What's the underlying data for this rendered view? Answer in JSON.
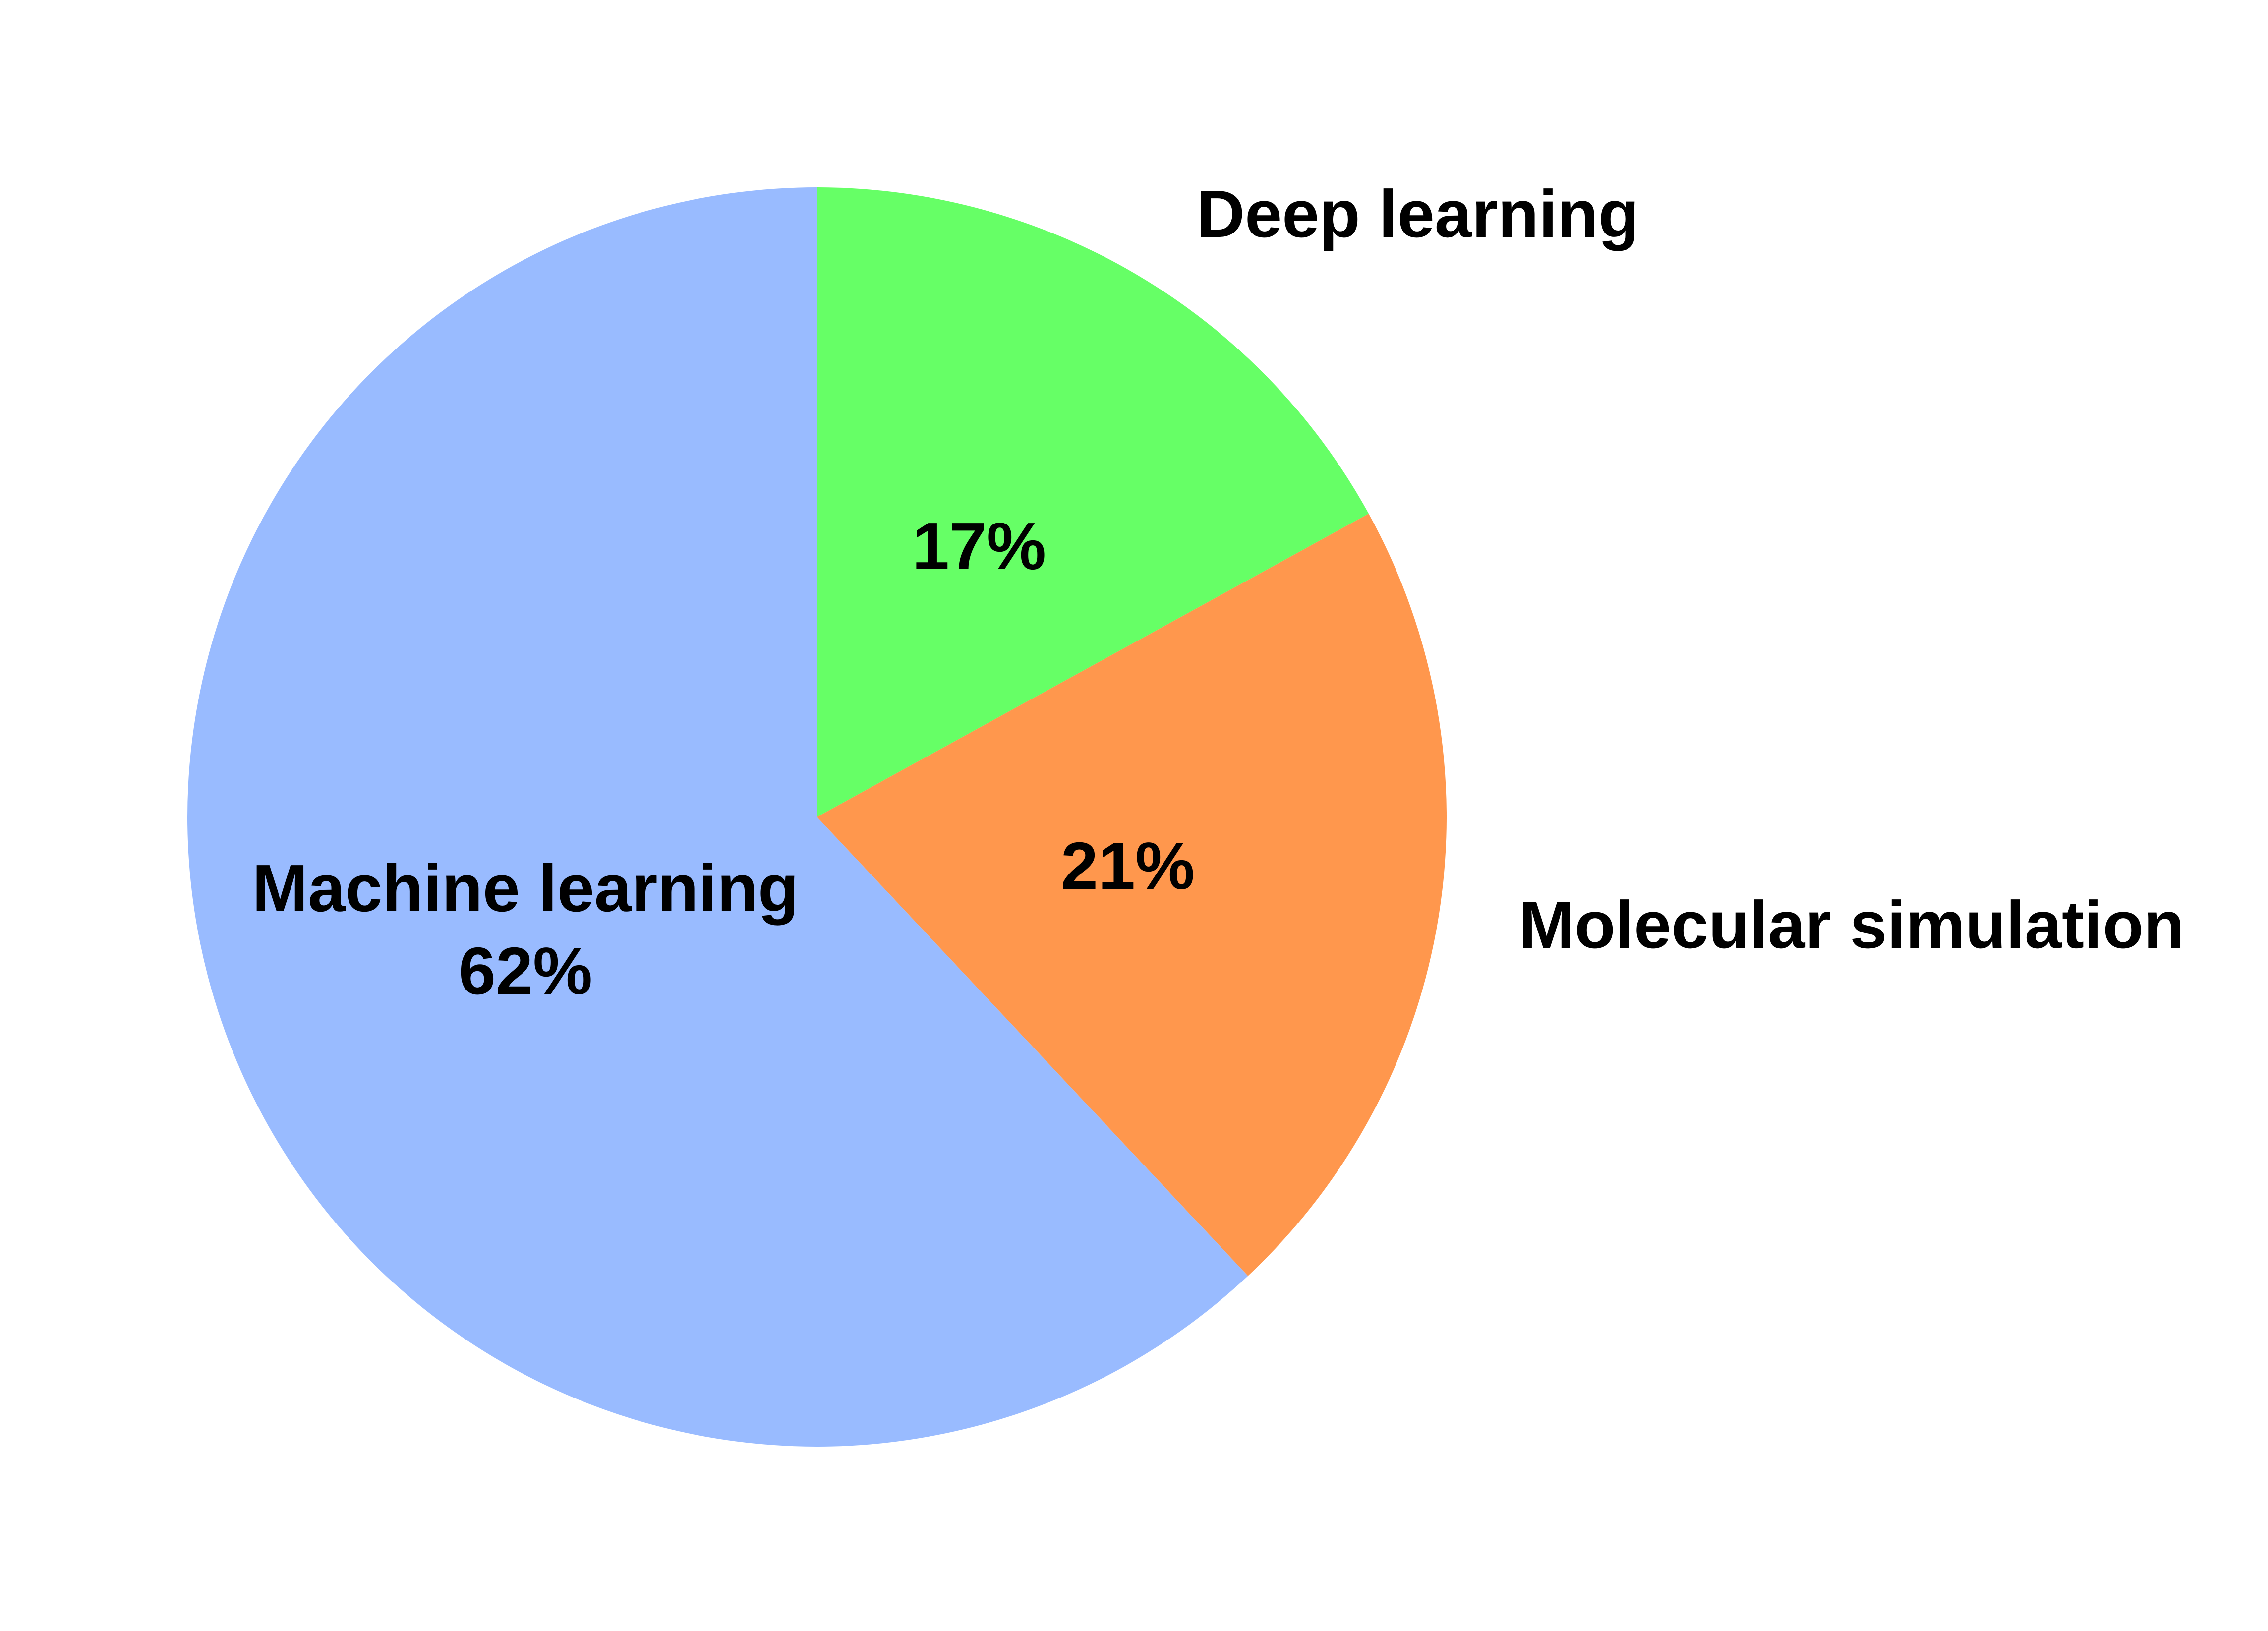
{
  "chart_data": {
    "type": "pie",
    "start_angle": "top",
    "direction": "clockwise",
    "slices": [
      {
        "name": "Deep learning",
        "value": 17,
        "value_label": "17%",
        "color": "#66ff66"
      },
      {
        "name": "Molecular simulation",
        "value": 21,
        "value_label": "21%",
        "color": "#ff974d"
      },
      {
        "name": "Machine learning",
        "value": 62,
        "value_label": "62%",
        "color": "#99bbff"
      }
    ]
  }
}
